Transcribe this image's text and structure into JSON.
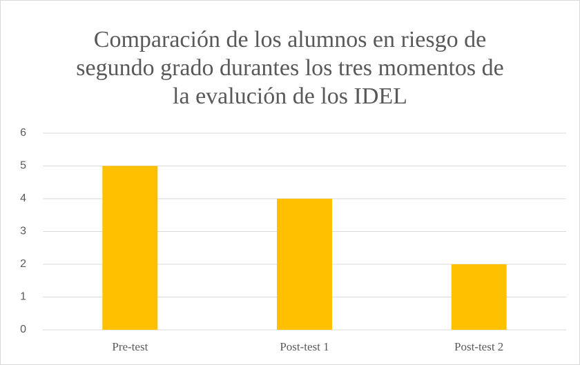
{
  "chart_data": {
    "type": "bar",
    "title": "Comparación de los alumnos en riesgo de segundo grado durantes los tres momentos de la evalución de los IDEL",
    "categories": [
      "Pre-test",
      "Post-test 1",
      "Post-test 2"
    ],
    "values": [
      5,
      4,
      2
    ],
    "color": "#ffc000",
    "ylim": [
      0,
      6
    ],
    "yticks": [
      0,
      1,
      2,
      3,
      4,
      5,
      6
    ],
    "grid": true
  }
}
